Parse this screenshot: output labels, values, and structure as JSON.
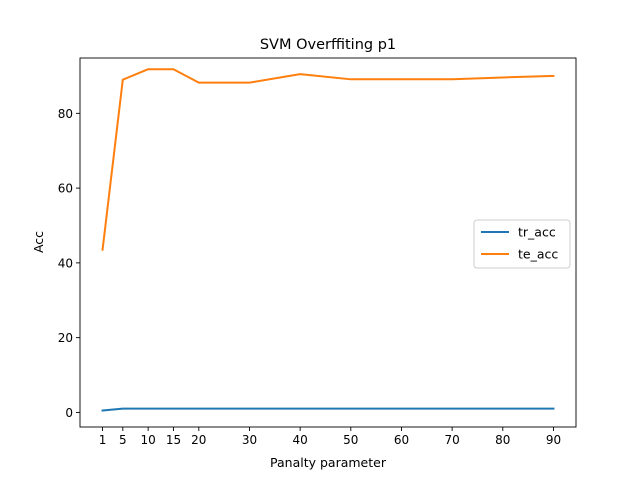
{
  "chart_data": {
    "type": "line",
    "title": "SVM Overffiting p1",
    "xlabel": "Panalty parameter",
    "ylabel": "Acc",
    "x": [
      1,
      5,
      10,
      15,
      20,
      30,
      40,
      50,
      60,
      70,
      80,
      90
    ],
    "xticks": [
      1,
      5,
      10,
      15,
      20,
      30,
      40,
      50,
      60,
      70,
      80,
      90
    ],
    "yticks": [
      0,
      20,
      40,
      60,
      80
    ],
    "xlim": [
      -3.45,
      94.45
    ],
    "ylim": [
      -3.9,
      94.8
    ],
    "grid": false,
    "legend_position": "center-right",
    "series": [
      {
        "name": "tr_acc",
        "color": "#1f77b4",
        "values": [
          0.5,
          1.0,
          1.0,
          1.0,
          1.0,
          1.0,
          1.0,
          1.0,
          1.0,
          1.0,
          1.0,
          1.0
        ]
      },
      {
        "name": "te_acc",
        "color": "#ff7f0e",
        "values": [
          43.5,
          89.0,
          91.8,
          91.8,
          88.2,
          88.2,
          90.5,
          89.1,
          89.1,
          89.1,
          89.6,
          90.0
        ]
      }
    ]
  }
}
